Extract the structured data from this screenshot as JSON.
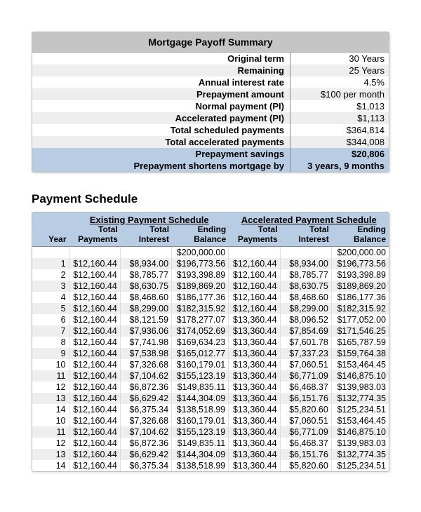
{
  "summary": {
    "title": "Mortgage Payoff Summary",
    "rows": [
      {
        "label": "Original term",
        "value": "30 Years",
        "stripe": false,
        "highlight": false
      },
      {
        "label": "Remaining",
        "value": "25 Years",
        "stripe": true,
        "highlight": false
      },
      {
        "label": "Annual interest rate",
        "value": "4.5%",
        "stripe": false,
        "highlight": false
      },
      {
        "label": "Prepayment amount",
        "value": "$100 per month",
        "stripe": true,
        "highlight": false
      },
      {
        "label": "Normal payment (PI)",
        "value": "$1,013",
        "stripe": false,
        "highlight": false
      },
      {
        "label": "Accelerated payment (PI)",
        "value": "$1,113",
        "stripe": true,
        "highlight": false
      },
      {
        "label": "Total scheduled payments",
        "value": "$364,814",
        "stripe": false,
        "highlight": false
      },
      {
        "label": "Total accelerated payments",
        "value": "$344,008",
        "stripe": true,
        "highlight": false
      },
      {
        "label": "Prepayment savings",
        "value": "$20,806",
        "stripe": false,
        "highlight": true
      },
      {
        "label": "Prepayment shortens mortgage by",
        "value": "3 years, 9 months",
        "stripe": false,
        "highlight": true
      }
    ]
  },
  "schedule": {
    "title": "Payment Schedule",
    "group_left_label": "Existing Payment Schedule",
    "group_right_label": "Accelerated Payment Schedule",
    "columns": {
      "year": "Year",
      "payments": "Total\nPayments",
      "interest": "Total\nInterest",
      "ending": "Ending\nBalance"
    },
    "initial_row": {
      "e_end": "$200,000.00",
      "a_end": "$200,000.00"
    },
    "rows": [
      {
        "y": "1",
        "ep": "$12,160.44",
        "ei": "$8,934.00",
        "ee": "$196,773.56",
        "ap": "$12,160.44",
        "ai": "$8,934.00",
        "ae": "$196,773.56",
        "stripe": true
      },
      {
        "y": "2",
        "ep": "$12,160.44",
        "ei": "$8,785.77",
        "ee": "$193,398.89",
        "ap": "$12,160.44",
        "ai": "$8,785.77",
        "ae": "$193,398.89",
        "stripe": false
      },
      {
        "y": "3",
        "ep": "$12,160.44",
        "ei": "$8,630.75",
        "ee": "$189,869.20",
        "ap": "$12,160.44",
        "ai": "$8,630.75",
        "ae": "$189,869.20",
        "stripe": true
      },
      {
        "y": "4",
        "ep": "$12,160.44",
        "ei": "$8,468.60",
        "ee": "$186,177.36",
        "ap": "$12,160.44",
        "ai": "$8,468.60",
        "ae": "$186,177.36",
        "stripe": false
      },
      {
        "y": "5",
        "ep": "$12,160.44",
        "ei": "$8,299.00",
        "ee": "$182,315.92",
        "ap": "$12,160.44",
        "ai": "$8,299.00",
        "ae": "$182,315.92",
        "stripe": true
      },
      {
        "y": "6",
        "ep": "$12,160.44",
        "ei": "$8,121.59",
        "ee": "$178,277.07",
        "ap": "$13,360.44",
        "ai": "$8,096.52",
        "ae": "$177,052.00",
        "stripe": false
      },
      {
        "y": "7",
        "ep": "$12,160.44",
        "ei": "$7,936.06",
        "ee": "$174,052.69",
        "ap": "$13,360.44",
        "ai": "$7,854.69",
        "ae": "$171,546.25",
        "stripe": true
      },
      {
        "y": "8",
        "ep": "$12,160.44",
        "ei": "$7,741.98",
        "ee": "$169,634.23",
        "ap": "$13,360.44",
        "ai": "$7,601.78",
        "ae": "$165,787.59",
        "stripe": false
      },
      {
        "y": "9",
        "ep": "$12,160.44",
        "ei": "$7,538.98",
        "ee": "$165,012.77",
        "ap": "$13,360.44",
        "ai": "$7,337.23",
        "ae": "$159,764.38",
        "stripe": true
      },
      {
        "y": "10",
        "ep": "$12,160.44",
        "ei": "$7,326.68",
        "ee": "$160,179.01",
        "ap": "$13,360.44",
        "ai": "$7,060.51",
        "ae": "$153,464.45",
        "stripe": false
      },
      {
        "y": "11",
        "ep": "$12,160.44",
        "ei": "$7,104.62",
        "ee": "$155,123.19",
        "ap": "$13,360.44",
        "ai": "$6,771.09",
        "ae": "$146,875.10",
        "stripe": true
      },
      {
        "y": "12",
        "ep": "$12,160.44",
        "ei": "$6,872.36",
        "ee": "$149,835.11",
        "ap": "$13,360.44",
        "ai": "$6,468.37",
        "ae": "$139,983.03",
        "stripe": false
      },
      {
        "y": "13",
        "ep": "$12,160.44",
        "ei": "$6,629.42",
        "ee": "$144,304.09",
        "ap": "$13,360.44",
        "ai": "$6,151.76",
        "ae": "$132,774.35",
        "stripe": true
      },
      {
        "y": "14",
        "ep": "$12,160.44",
        "ei": "$6,375.34",
        "ee": "$138,518.99",
        "ap": "$13,360.44",
        "ai": "$5,820.60",
        "ae": "$125,234.51",
        "stripe": false
      },
      {
        "y": "10",
        "ep": "$12,160.44",
        "ei": "$7,326.68",
        "ee": "$160,179.01",
        "ap": "$13,360.44",
        "ai": "$7,060.51",
        "ae": "$153,464.45",
        "stripe": false
      },
      {
        "y": "11",
        "ep": "$12,160.44",
        "ei": "$7,104.62",
        "ee": "$155,123.19",
        "ap": "$13,360.44",
        "ai": "$6,771.09",
        "ae": "$146,875.10",
        "stripe": true
      },
      {
        "y": "12",
        "ep": "$12,160.44",
        "ei": "$6,872.36",
        "ee": "$149,835.11",
        "ap": "$13,360.44",
        "ai": "$6,468.37",
        "ae": "$139,983.03",
        "stripe": false
      },
      {
        "y": "13",
        "ep": "$12,160.44",
        "ei": "$6,629.42",
        "ee": "$144,304.09",
        "ap": "$13,360.44",
        "ai": "$6,151.76",
        "ae": "$132,774.35",
        "stripe": true
      },
      {
        "y": "14",
        "ep": "$12,160.44",
        "ei": "$6,375.34",
        "ee": "$138,518.99",
        "ap": "$13,360.44",
        "ai": "$5,820.60",
        "ae": "$125,234.51",
        "stripe": false
      }
    ],
    "colors": {
      "header_bg": "#b8cce4",
      "stripe_bg": "#eeeeee",
      "title_bg": "#c5c5c5"
    }
  }
}
